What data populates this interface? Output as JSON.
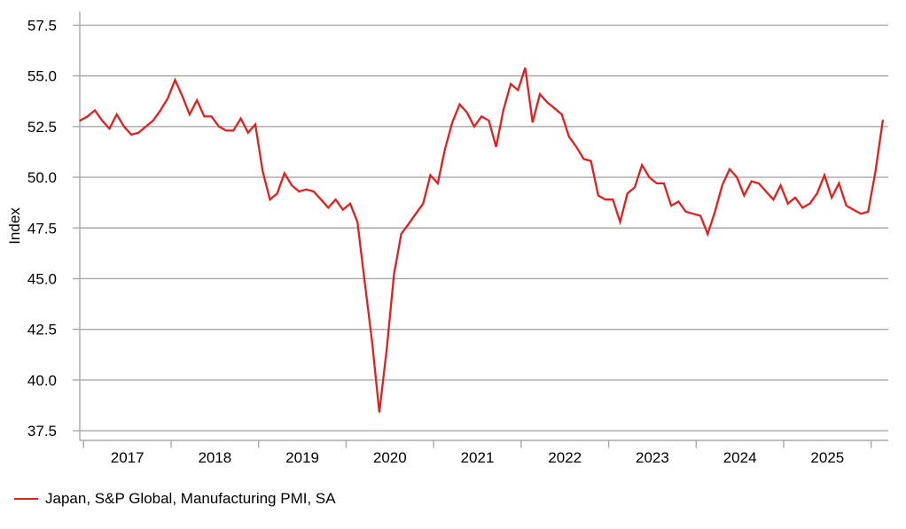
{
  "chart_data": {
    "type": "line",
    "title": "",
    "xlabel": "",
    "ylabel": "Index",
    "grid": "horizontal",
    "legend_position": "bottom-left",
    "y_ticks": [
      {
        "value": 57.5,
        "label": "57.5"
      },
      {
        "value": 55.0,
        "label": "55.0"
      },
      {
        "value": 52.5,
        "label": "52.5"
      },
      {
        "value": 50.0,
        "label": "50.0"
      },
      {
        "value": 47.5,
        "label": "47.5"
      },
      {
        "value": 45.0,
        "label": "45.0"
      },
      {
        "value": 42.5,
        "label": "42.5"
      },
      {
        "value": 40.0,
        "label": "40.0"
      },
      {
        "value": 37.5,
        "label": "37.5"
      }
    ],
    "ylim": [
      37.5,
      57.5
    ],
    "x_year_labels": [
      "2017",
      "2018",
      "2019",
      "2020",
      "2021",
      "2022",
      "2023",
      "2024",
      "2025"
    ],
    "x_interval": "monthly",
    "x_start": "2016-12",
    "x_end": "2026-02",
    "series": [
      {
        "name": "Japan, S&P Global, Manufacturing PMI, SA",
        "color": "#e01f1f",
        "values": [
          52.8,
          53.0,
          53.3,
          52.8,
          52.4,
          53.1,
          52.5,
          52.1,
          52.2,
          52.5,
          52.8,
          53.3,
          53.9,
          54.8,
          54.0,
          53.1,
          53.8,
          53.0,
          53.0,
          52.5,
          52.3,
          52.3,
          52.9,
          52.2,
          52.6,
          50.3,
          48.9,
          49.2,
          50.2,
          49.6,
          49.3,
          49.4,
          49.3,
          48.9,
          48.5,
          48.9,
          48.4,
          48.7,
          47.8,
          44.8,
          41.9,
          38.4,
          41.5,
          45.2,
          47.2,
          47.7,
          48.2,
          48.7,
          50.1,
          49.7,
          51.4,
          52.7,
          53.6,
          53.2,
          52.5,
          53.0,
          52.8,
          51.5,
          53.3,
          54.6,
          54.3,
          55.4,
          52.7,
          54.1,
          53.7,
          53.4,
          53.1,
          52.0,
          51.5,
          50.9,
          50.8,
          49.1,
          48.9,
          48.9,
          47.8,
          49.2,
          49.5,
          50.6,
          50.0,
          49.7,
          49.7,
          48.6,
          48.8,
          48.3,
          48.2,
          48.1,
          47.2,
          48.3,
          49.6,
          50.4,
          50.0,
          49.1,
          49.8,
          49.7,
          49.3,
          48.9,
          49.6,
          48.7,
          49.0,
          48.5,
          48.7,
          49.2,
          50.1,
          49.0,
          49.7,
          48.6,
          48.4,
          48.2,
          48.3,
          50.3,
          52.8
        ]
      }
    ]
  },
  "axes": {
    "y_title": "Index"
  },
  "legend": {
    "label": "Japan, S&P Global, Manufacturing PMI, SA",
    "marker_color": "#e01f1f"
  },
  "colors": {
    "line": "#e01f1f",
    "grid": "#a8a8a8",
    "axis": "#a8a8a8",
    "text": "#000000",
    "background": "#ffffff"
  }
}
